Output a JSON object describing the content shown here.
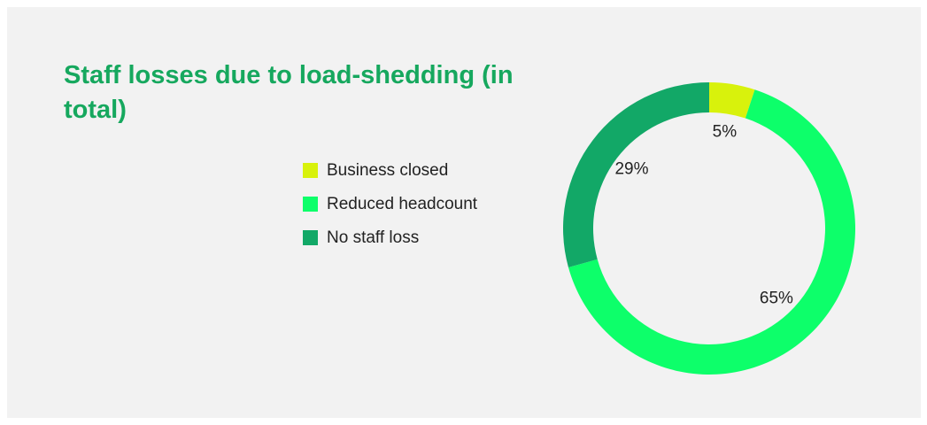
{
  "chart_data": {
    "type": "donut",
    "title": "Staff losses due to load-shedding (in total)",
    "categories": [
      "Business closed",
      "Reduced headcount",
      "No staff loss"
    ],
    "values": [
      5,
      65,
      29
    ],
    "value_labels": [
      "5%",
      "65%",
      "29%"
    ],
    "colors": [
      "#d8f20c",
      "#0dff6a",
      "#12a867"
    ],
    "legend": "left"
  }
}
